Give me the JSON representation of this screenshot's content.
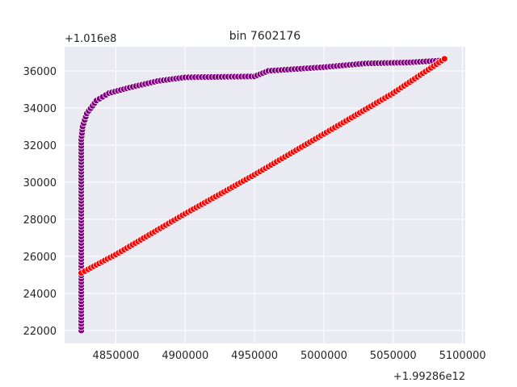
{
  "chart_data": {
    "type": "scatter",
    "title": "bin 7602176",
    "xlabel": "",
    "ylabel": "",
    "x_offset_label": "+1.99286e12",
    "y_offset_label": "+1.016e8",
    "xlim": [
      4830000,
      4095000
    ],
    "ylim": [
      21300,
      37300
    ],
    "xticks": [
      4850000,
      4900000,
      4950000,
      5000000,
      5050000,
      5100000
    ],
    "yticks": [
      22000,
      24000,
      26000,
      28000,
      30000,
      32000,
      34000,
      36000
    ],
    "grid": true,
    "legend": "none",
    "background": "#eaeaf2",
    "series": [
      {
        "color": "#800080",
        "path": [
          [
            4825000,
            22000
          ],
          [
            4825000,
            32300
          ],
          [
            4826000,
            33000
          ],
          [
            4829000,
            33700
          ],
          [
            4836000,
            34400
          ],
          [
            4845000,
            34800
          ],
          [
            4860000,
            35100
          ],
          [
            4880000,
            35450
          ],
          [
            4900000,
            35650
          ],
          [
            4950000,
            35700
          ],
          [
            4960000,
            36000
          ],
          [
            5000000,
            36200
          ],
          [
            5030000,
            36400
          ],
          [
            5060000,
            36450
          ],
          [
            5083000,
            36550
          ]
        ]
      },
      {
        "color": "#ff0000",
        "path": [
          [
            4825000,
            25100
          ],
          [
            4830000,
            25300
          ],
          [
            4850000,
            26100
          ],
          [
            4900000,
            28300
          ],
          [
            4950000,
            30400
          ],
          [
            5000000,
            32600
          ],
          [
            5050000,
            34800
          ],
          [
            5087000,
            36650
          ]
        ]
      }
    ]
  }
}
